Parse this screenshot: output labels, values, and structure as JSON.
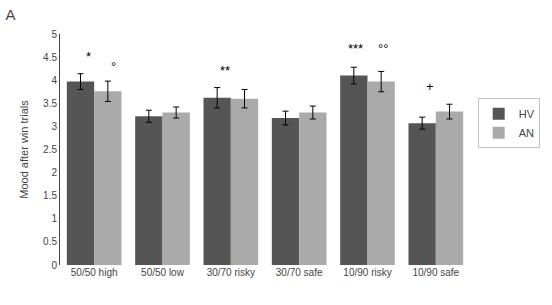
{
  "chart_data": {
    "type": "bar",
    "title": "A",
    "categories": [
      "50/50 high",
      "50/50 low",
      "30/70 risky",
      "30/70 safe",
      "10/90 risky",
      "10/90 safe"
    ],
    "series": [
      {
        "name": "HV",
        "color": "#555555",
        "values": [
          3.97,
          3.22,
          3.62,
          3.18,
          4.1,
          3.07
        ],
        "errors": [
          0.17,
          0.13,
          0.22,
          0.15,
          0.18,
          0.13
        ]
      },
      {
        "name": "AN",
        "color": "#aaaaaa",
        "values": [
          3.76,
          3.3,
          3.6,
          3.3,
          3.97,
          3.32
        ],
        "errors": [
          0.22,
          0.12,
          0.2,
          0.14,
          0.22,
          0.16
        ]
      }
    ],
    "ylabel": "Mood after win trials",
    "ylim": [
      0,
      5
    ],
    "yticks": [
      0,
      0.5,
      1,
      1.5,
      2,
      2.5,
      3,
      3.5,
      4,
      4.5,
      5
    ],
    "annotations": [
      {
        "text": "*",
        "x": -0.08,
        "y": 4.3
      },
      {
        "text": "°",
        "x": 0.28,
        "y": 4.1
      },
      {
        "text": "**",
        "x": 1.92,
        "y": 4.0
      },
      {
        "text": "***",
        "x": 3.82,
        "y": 4.48
      },
      {
        "text": "°°",
        "x": 4.22,
        "y": 4.48
      },
      {
        "text": "+",
        "x": 4.92,
        "y": 3.65
      }
    ],
    "grid": false,
    "legend": "right"
  }
}
